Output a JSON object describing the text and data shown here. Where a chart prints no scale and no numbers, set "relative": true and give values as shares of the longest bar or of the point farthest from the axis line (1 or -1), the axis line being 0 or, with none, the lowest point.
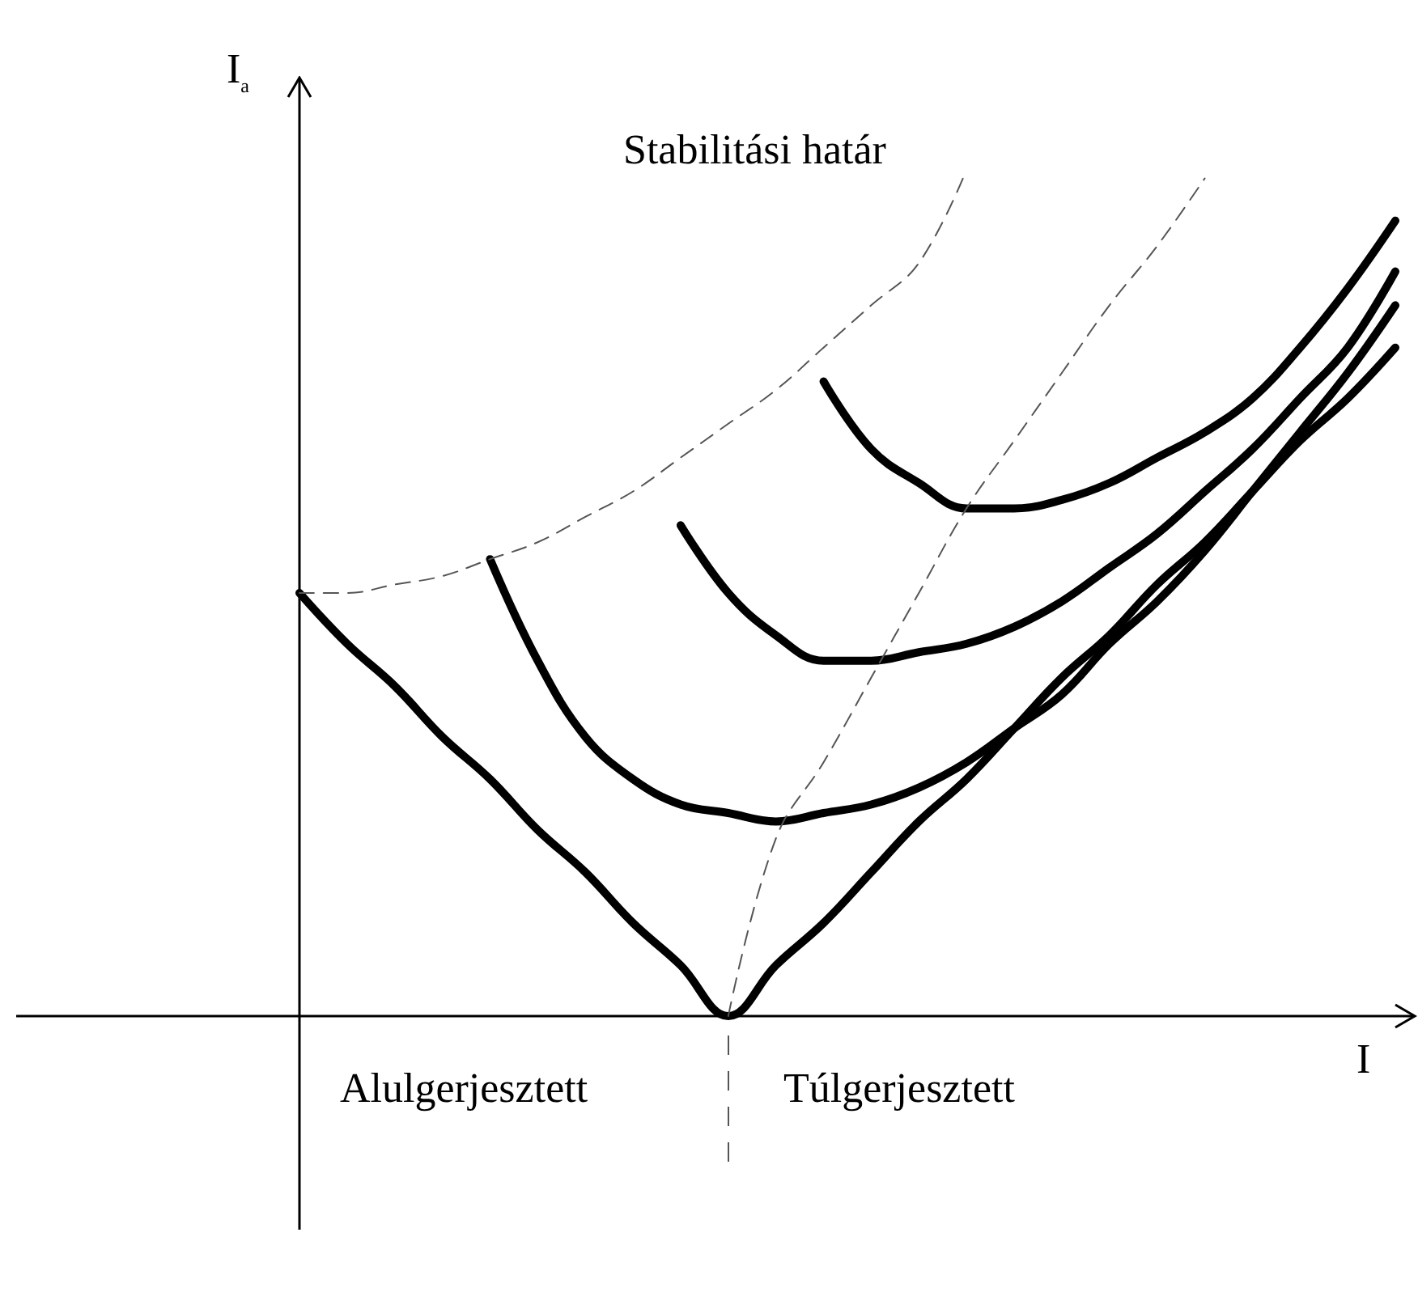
{
  "chart_data": {
    "type": "line",
    "relative": true,
    "xlabel": "I",
    "ylabel": "I$_{a}$",
    "grid": false,
    "marker": "none",
    "categories": [
      null,
      null,
      null,
      null,
      null,
      null,
      null,
      null,
      null,
      null,
      null,
      null,
      null,
      null,
      null,
      null,
      null,
      null,
      null,
      null,
      null,
      null,
      null,
      null
    ],
    "annotations": [
      "Stabilitási határ",
      "Alulgerjesztett",
      "Túlgerjesztett"
    ],
    "series": [
      {
        "color": "#000000",
        "line_style": "solid",
        "values": [
          0.5,
          0.44,
          0.39,
          0.33,
          0.28,
          0.22,
          0.17,
          0.11,
          0.06,
          0,
          0.06,
          0.11,
          0.17,
          0.23,
          0.28,
          0.34,
          0.4,
          0.45,
          0.51,
          0.56,
          0.62,
          0.68,
          0.73,
          0.79
        ]
      },
      {
        "color": "#000000",
        "line_style": "solid",
        "values": [
          null,
          null,
          null,
          null,
          0.54,
          0.42,
          0.33,
          0.28,
          0.25,
          0.24,
          0.23,
          0.24,
          0.25,
          0.27,
          0.3,
          0.34,
          0.38,
          0.44,
          0.49,
          0.55,
          0.62,
          0.69,
          0.76,
          0.84
        ]
      },
      {
        "color": "#000000",
        "line_style": "solid",
        "values": [
          null,
          null,
          null,
          null,
          null,
          null,
          null,
          null,
          0.58,
          0.5,
          0.45,
          0.42,
          0.42,
          0.43,
          0.44,
          0.46,
          0.49,
          0.53,
          0.57,
          0.62,
          0.67,
          0.73,
          0.79,
          0.88
        ]
      },
      {
        "color": "#000000",
        "line_style": "solid",
        "values": [
          null,
          null,
          null,
          null,
          null,
          null,
          null,
          null,
          null,
          null,
          null,
          0.75,
          0.67,
          0.63,
          0.6,
          0.6,
          0.61,
          0.63,
          0.66,
          0.69,
          0.73,
          0.79,
          0.86,
          0.94
        ]
      },
      {
        "color": "#555555",
        "line_style": "dashed",
        "values": [
          0.5,
          0.5,
          0.51,
          0.52,
          0.54,
          0.56,
          0.59,
          0.62,
          0.66,
          0.7,
          0.74,
          0.79,
          0.84,
          0.89,
          1,
          null,
          null,
          null,
          null,
          null,
          null,
          null,
          null,
          null
        ]
      },
      {
        "color": "#555555",
        "line_style": "dashed",
        "values": [
          null,
          null,
          null,
          null,
          null,
          null,
          null,
          null,
          null,
          0,
          0.21,
          0.3,
          0.4,
          0.5,
          0.6,
          0.68,
          0.76,
          0.84,
          0.91,
          0.99,
          null,
          null,
          null,
          null
        ]
      }
    ]
  }
}
